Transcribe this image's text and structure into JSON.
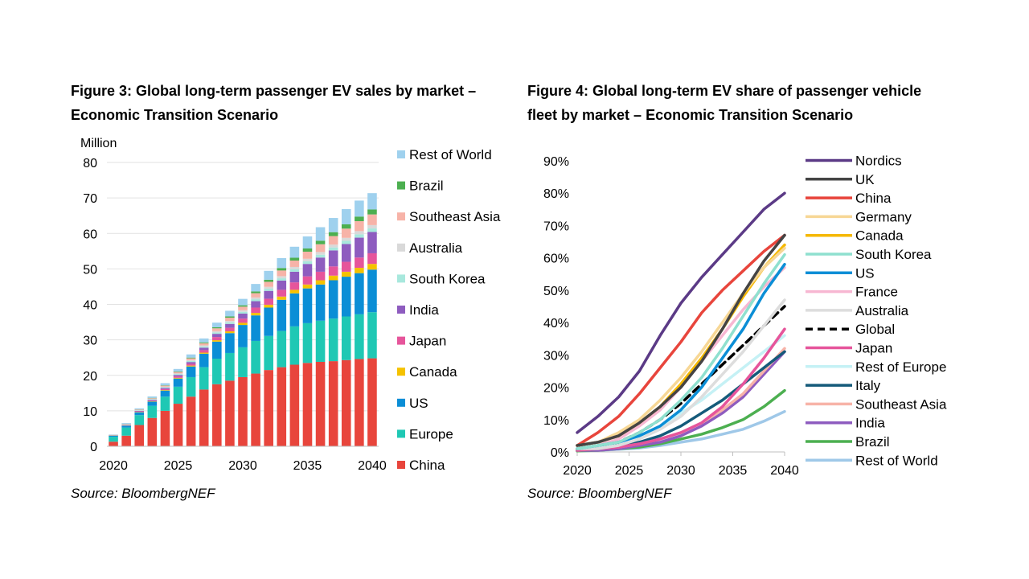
{
  "figure3": {
    "title_line1": "Figure 3: Global long-term passenger EV sales by market –",
    "title_line2": "Economic Transition Scenario",
    "source": "Source: BloombergNEF"
  },
  "figure4": {
    "title_line1": "Figure 4: Global long-term EV share of passenger vehicle",
    "title_line2": "fleet by market – Economic Transition Scenario",
    "source": "Source: BloombergNEF"
  },
  "chart_data": [
    {
      "type": "bar",
      "stacked": true,
      "title": "Global long-term passenger EV sales by market – Economic Transition Scenario",
      "ylabel": "Million",
      "ylim": [
        0,
        80
      ],
      "yticks": [
        0,
        10,
        20,
        30,
        40,
        50,
        60,
        70,
        80
      ],
      "xtick_labels": [
        "2020",
        "2025",
        "2030",
        "2035",
        "2040"
      ],
      "categories": [
        "2020",
        "2021",
        "2022",
        "2023",
        "2024",
        "2025",
        "2026",
        "2027",
        "2028",
        "2029",
        "2030",
        "2031",
        "2032",
        "2033",
        "2034",
        "2035",
        "2036",
        "2037",
        "2038",
        "2039",
        "2040"
      ],
      "legend_position": "right",
      "series": [
        {
          "name": "China",
          "color": "#e8453c",
          "values": [
            1.3,
            3.0,
            6.0,
            8.0,
            10.0,
            12.0,
            14.0,
            16.0,
            17.5,
            18.5,
            19.5,
            20.5,
            21.5,
            22.3,
            23.0,
            23.5,
            23.8,
            24.0,
            24.3,
            24.6,
            24.8
          ]
        },
        {
          "name": "Europe",
          "color": "#1fc8b4",
          "values": [
            1.4,
            2.3,
            2.8,
            3.4,
            4.0,
            4.8,
            5.5,
            6.3,
            7.2,
            7.8,
            8.4,
            9.2,
            9.6,
            10.2,
            10.8,
            11.2,
            11.6,
            12.0,
            12.3,
            12.6,
            13.0
          ]
        },
        {
          "name": "US",
          "color": "#0b8ed6",
          "values": [
            0.3,
            0.5,
            0.8,
            1.2,
            1.7,
            2.3,
            3.0,
            3.8,
            4.8,
            5.6,
            6.3,
            7.2,
            8.0,
            8.8,
            9.3,
            9.8,
            10.2,
            10.8,
            11.2,
            11.6,
            12.0
          ]
        },
        {
          "name": "Canada",
          "color": "#f5c200",
          "values": [
            0.05,
            0.05,
            0.1,
            0.1,
            0.15,
            0.2,
            0.25,
            0.3,
            0.4,
            0.5,
            0.6,
            0.7,
            0.8,
            0.9,
            1.0,
            1.1,
            1.2,
            1.3,
            1.4,
            1.5,
            1.6
          ]
        },
        {
          "name": "Japan",
          "color": "#e6559b",
          "values": [
            0.05,
            0.1,
            0.15,
            0.2,
            0.3,
            0.4,
            0.5,
            0.7,
            0.9,
            1.0,
            1.2,
            1.5,
            1.7,
            1.9,
            2.1,
            2.3,
            2.4,
            2.6,
            2.8,
            2.9,
            3.0
          ]
        },
        {
          "name": "India",
          "color": "#8e5cbf",
          "values": [
            0.05,
            0.1,
            0.15,
            0.2,
            0.3,
            0.4,
            0.5,
            0.7,
            0.9,
            1.1,
            1.4,
            1.8,
            2.2,
            2.6,
            3.0,
            3.5,
            4.0,
            4.5,
            5.0,
            5.6,
            6.0
          ]
        },
        {
          "name": "South Korea",
          "color": "#a8e8dd",
          "values": [
            0.05,
            0.1,
            0.1,
            0.15,
            0.2,
            0.25,
            0.3,
            0.35,
            0.4,
            0.45,
            0.5,
            0.55,
            0.6,
            0.65,
            0.7,
            0.75,
            0.8,
            0.85,
            0.9,
            0.95,
            1.0
          ]
        },
        {
          "name": "Australia",
          "color": "#d9d9d9",
          "values": [
            0.0,
            0.05,
            0.1,
            0.1,
            0.15,
            0.2,
            0.25,
            0.3,
            0.35,
            0.4,
            0.45,
            0.5,
            0.55,
            0.6,
            0.65,
            0.7,
            0.75,
            0.8,
            0.85,
            0.9,
            0.95
          ]
        },
        {
          "name": "Southeast Asia",
          "color": "#f7b3a8",
          "values": [
            0.05,
            0.1,
            0.15,
            0.2,
            0.3,
            0.4,
            0.5,
            0.6,
            0.8,
            0.9,
            1.0,
            1.2,
            1.4,
            1.6,
            1.8,
            2.0,
            2.2,
            2.4,
            2.6,
            2.8,
            3.0
          ]
        },
        {
          "name": "Brazil",
          "color": "#4caf50",
          "values": [
            0.0,
            0.05,
            0.05,
            0.1,
            0.1,
            0.15,
            0.2,
            0.25,
            0.3,
            0.35,
            0.4,
            0.5,
            0.6,
            0.7,
            0.8,
            0.9,
            1.0,
            1.1,
            1.2,
            1.3,
            1.4
          ]
        },
        {
          "name": "Rest of World",
          "color": "#9fd1ee",
          "values": [
            0.1,
            0.2,
            0.3,
            0.4,
            0.6,
            0.7,
            0.9,
            1.1,
            1.3,
            1.6,
            1.8,
            2.1,
            2.5,
            2.8,
            3.1,
            3.4,
            3.8,
            4.0,
            4.3,
            4.5,
            4.6
          ]
        }
      ]
    },
    {
      "type": "line",
      "title": "Global long-term EV share of passenger vehicle fleet by market – Economic Transition Scenario",
      "ylabel": "",
      "ylim": [
        0,
        90
      ],
      "yticks": [
        0,
        10,
        20,
        30,
        40,
        50,
        60,
        70,
        80,
        90
      ],
      "ytick_labels": [
        "0%",
        "10%",
        "20%",
        "30%",
        "40%",
        "50%",
        "60%",
        "70%",
        "80%",
        "90%"
      ],
      "xlim": [
        2020,
        2040
      ],
      "xticks": [
        2020,
        2025,
        2030,
        2035,
        2040
      ],
      "xtick_labels": [
        "2020",
        "2025",
        "2030",
        "2035",
        "2040"
      ],
      "x": [
        2020,
        2022,
        2024,
        2026,
        2028,
        2030,
        2032,
        2034,
        2036,
        2038,
        2040
      ],
      "legend_position": "right",
      "series": [
        {
          "name": "Nordics",
          "color": "#5b3a86",
          "dashed": false,
          "values": [
            6,
            11,
            17,
            25,
            36,
            46,
            54,
            61,
            68,
            75,
            80
          ]
        },
        {
          "name": "UK",
          "color": "#444444",
          "dashed": false,
          "values": [
            2,
            3,
            5,
            9,
            14,
            20,
            28,
            38,
            49,
            59,
            67
          ]
        },
        {
          "name": "China",
          "color": "#e8453c",
          "dashed": false,
          "values": [
            2,
            6,
            11,
            18,
            26,
            34,
            43,
            50,
            56,
            62,
            67
          ]
        },
        {
          "name": "Germany",
          "color": "#f7d795",
          "dashed": false,
          "values": [
            2,
            3,
            6,
            10,
            16,
            23,
            31,
            40,
            49,
            57,
            63
          ]
        },
        {
          "name": "Canada",
          "color": "#f5b800",
          "dashed": false,
          "values": [
            2,
            3,
            5,
            9,
            14,
            21,
            29,
            38,
            48,
            57,
            64
          ]
        },
        {
          "name": "South Korea",
          "color": "#8fe0cf",
          "dashed": false,
          "values": [
            1,
            2,
            3,
            6,
            10,
            16,
            23,
            32,
            42,
            52,
            61
          ]
        },
        {
          "name": "US",
          "color": "#0b8ed6",
          "dashed": false,
          "values": [
            1,
            2,
            3,
            5,
            8,
            13,
            20,
            29,
            38,
            49,
            58
          ]
        },
        {
          "name": "France",
          "color": "#f7b7d2",
          "dashed": false,
          "values": [
            1,
            2,
            4,
            8,
            13,
            20,
            28,
            36,
            44,
            51,
            57
          ]
        },
        {
          "name": "Australia",
          "color": "#dddddd",
          "dashed": false,
          "values": [
            1,
            1,
            2,
            4,
            7,
            11,
            17,
            24,
            31,
            39,
            47
          ]
        },
        {
          "name": "Global",
          "color": "#000000",
          "dashed": true,
          "values": [
            1,
            2,
            3,
            6,
            10,
            15,
            21,
            27,
            33,
            39,
            45
          ]
        },
        {
          "name": "Japan",
          "color": "#e6559b",
          "dashed": false,
          "values": [
            0.5,
            1,
            1.5,
            2.5,
            4,
            6,
            9,
            14,
            21,
            29,
            38
          ]
        },
        {
          "name": "Rest of Europe",
          "color": "#c5f1f5",
          "dashed": false,
          "values": [
            1,
            1.5,
            3,
            5,
            8,
            12,
            16,
            21,
            26,
            31,
            36
          ]
        },
        {
          "name": "Italy",
          "color": "#155a7a",
          "dashed": false,
          "values": [
            0.5,
            1,
            2,
            3,
            5,
            8,
            12,
            16,
            21,
            26,
            31
          ]
        },
        {
          "name": "Southeast Asia",
          "color": "#f7b3a8",
          "dashed": false,
          "values": [
            0.5,
            1,
            1.5,
            2.5,
            4,
            6,
            9,
            13,
            18,
            25,
            32
          ]
        },
        {
          "name": "India",
          "color": "#8e5cbf",
          "dashed": false,
          "values": [
            0.5,
            0.5,
            1,
            2,
            3,
            5,
            8,
            12,
            17,
            24,
            31
          ]
        },
        {
          "name": "Brazil",
          "color": "#4caf50",
          "dashed": false,
          "values": [
            0.3,
            0.5,
            1,
            1.5,
            2.5,
            4,
            5.5,
            7.5,
            10,
            14,
            19
          ]
        },
        {
          "name": "Rest of World",
          "color": "#9fc8e8",
          "dashed": false,
          "values": [
            0.3,
            0.5,
            0.8,
            1.2,
            2,
            3,
            4,
            5.5,
            7,
            9.5,
            12.5
          ]
        }
      ]
    }
  ]
}
